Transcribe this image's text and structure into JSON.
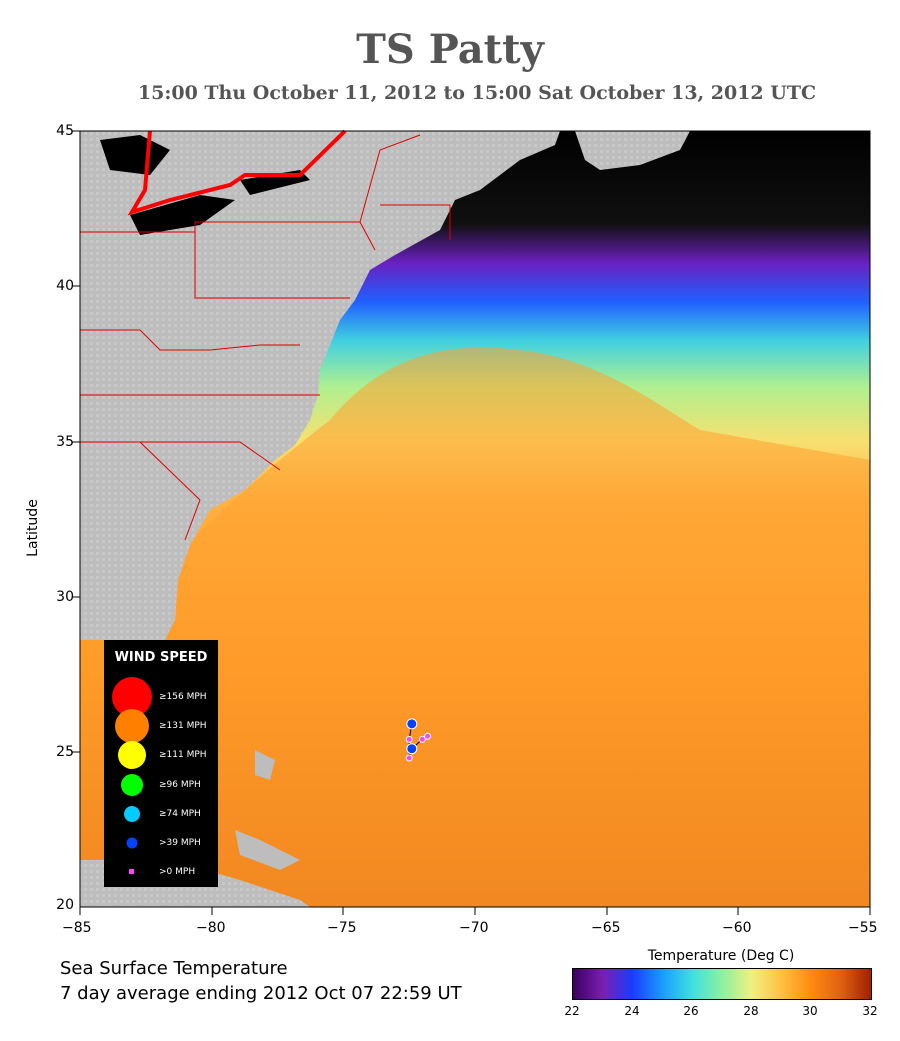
{
  "title": "TS Patty",
  "subtitle": "15:00 Thu October 11, 2012 to 15:00 Sat October 13, 2012  UTC",
  "axes": {
    "ylabel": "Latitude",
    "lon_ticks": [
      "−85",
      "−80",
      "−75",
      "−70",
      "−65",
      "−60",
      "−55"
    ],
    "lat_ticks": [
      "45",
      "40",
      "35",
      "30",
      "25",
      "20"
    ],
    "lon_range": [
      -85,
      -55
    ],
    "lat_range": [
      20,
      45
    ]
  },
  "legend": {
    "title": "WIND SPEED",
    "items": [
      {
        "label": "≥156 MPH",
        "color": "#ff0000"
      },
      {
        "label": "≥131 MPH",
        "color": "#ff8000"
      },
      {
        "label": "≥111 MPH",
        "color": "#ffff00"
      },
      {
        "label": "≥96 MPH",
        "color": "#00ff00"
      },
      {
        "label": "≥74 MPH",
        "color": "#00ccff"
      },
      {
        "label": ">39 MPH",
        "color": "#0044ff"
      },
      {
        "label": ">0 MPH",
        "color": "#ff44ff"
      }
    ]
  },
  "footer": {
    "line1": "Sea Surface Temperature",
    "line2": "7 day average ending 2012 Oct 07 22:59 UT"
  },
  "colorbar": {
    "title": "Temperature (Deg C)",
    "ticks": [
      "22",
      "24",
      "26",
      "28",
      "30",
      "32"
    ],
    "range": [
      22,
      32
    ],
    "colors": [
      "#3a0060",
      "#7a1fb0",
      "#1a3cff",
      "#1a9cff",
      "#3ee0e0",
      "#8cf0a0",
      "#f0f080",
      "#ffc040",
      "#ff8a10",
      "#e06010",
      "#a02000"
    ]
  },
  "storm_track": [
    {
      "lon": -72.4,
      "lat": 25.9,
      "category": ">39 MPH"
    },
    {
      "lon": -72.5,
      "lat": 25.4,
      "category": ">0 MPH"
    },
    {
      "lon": -72.5,
      "lat": 24.8,
      "category": ">0 MPH"
    },
    {
      "lon": -72.4,
      "lat": 25.1,
      "category": ">39 MPH"
    },
    {
      "lon": -72.0,
      "lat": 25.4,
      "category": ">0 MPH"
    },
    {
      "lon": -71.8,
      "lat": 25.5,
      "category": ">0 MPH"
    }
  ]
}
